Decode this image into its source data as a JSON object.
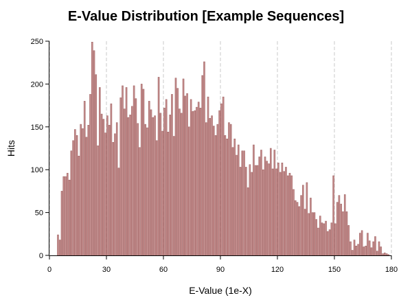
{
  "chart_data": {
    "type": "bar",
    "title": "E-Value Distribution [Example Sequences]",
    "xlabel": "E-Value (1e-X)",
    "ylabel": "Hits",
    "xlim": [
      0,
      180
    ],
    "ylim": [
      0,
      250
    ],
    "x_ticks": [
      "0",
      "30",
      "60",
      "90",
      "120",
      "150",
      "180"
    ],
    "y_ticks": [
      "0",
      "50",
      "100",
      "150",
      "200",
      "250"
    ],
    "x_grid": "vertical dashed at x ticks",
    "bar_color": "#c48b8b",
    "bar_stroke": "#9a5c5c",
    "series": [
      {
        "x_start": 0,
        "bin_width": 1,
        "values": [
          0,
          0,
          0,
          0,
          24,
          18,
          75,
          92,
          92,
          96,
          88,
          122,
          134,
          147,
          140,
          116,
          153,
          148,
          180,
          138,
          152,
          188,
          249,
          239,
          211,
          128,
          196,
          165,
          159,
          143,
          163,
          152,
          177,
          132,
          142,
          155,
          102,
          184,
          198,
          171,
          196,
          161,
          164,
          174,
          198,
          183,
          154,
          126,
          200,
          194,
          153,
          149,
          180,
          170,
          161,
          163,
          134,
          208,
          166,
          145,
          172,
          182,
          144,
          164,
          188,
          139,
          207,
          195,
          171,
          166,
          206,
          186,
          189,
          150,
          182,
          168,
          169,
          173,
          179,
          172,
          210,
          226,
          155,
          185,
          160,
          163,
          151,
          140,
          153,
          169,
          177,
          185,
          140,
          136,
          155,
          153,
          126,
          136,
          117,
          129,
          103,
          122,
          122,
          103,
          79,
          106,
          97,
          129,
          105,
          105,
          115,
          123,
          100,
          115,
          110,
          107,
          125,
          101,
          123,
          101,
          108,
          97,
          108,
          98,
          103,
          93,
          96,
          93,
          77,
          64,
          62,
          57,
          70,
          82,
          54,
          85,
          49,
          67,
          50,
          50,
          42,
          32,
          46,
          38,
          37,
          40,
          28,
          30,
          38,
          93,
          37,
          62,
          70,
          60,
          51,
          71,
          51,
          35,
          16,
          6,
          18,
          11,
          13,
          26,
          29,
          10,
          11,
          26,
          17,
          9,
          16,
          22,
          5,
          16,
          10,
          2,
          3,
          2,
          1,
          0
        ]
      }
    ]
  }
}
